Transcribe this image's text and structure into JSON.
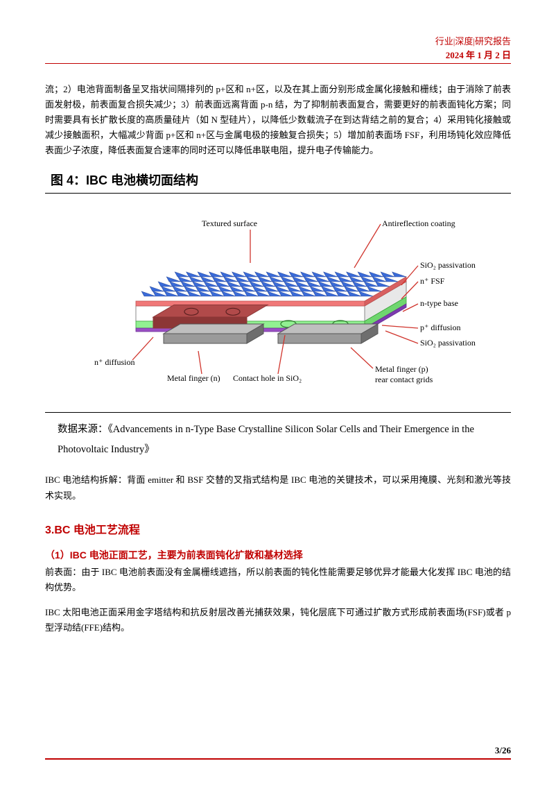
{
  "header": {
    "line1": "行业|深度|研究报告",
    "line2": "2024 年 1 月 2 日",
    "color": "#c00000"
  },
  "intro_para": "流；2）电池背面制备呈叉指状间隔排列的 p+区和 n+区，以及在其上面分别形成金属化接触和栅线；由于消除了前表面发射极，前表面复合损失减少；3）前表面远离背面 p-n 结，为了抑制前表面复合，需要更好的前表面钝化方案；同时需要具有长扩散长度的高质量硅片（如 N 型硅片），以降低少数载流子在到达背结之前的复合；4）采用钝化接触或减少接触面积，大幅减少背面 p+区和 n+区与金属电极的接触复合损失；5）增加前表面场 FSF，利用场钝化效应降低表面少子浓度，降低表面复合速率的同时还可以降低串联电阻，提升电子传输能力。",
  "figure": {
    "title": "图 4：IBC 电池横切面结构",
    "source_label": "数据来源：",
    "source_text": "《Advancements  in  n-Type  Base  Crystalline  Silicon  Solar  Cells  and  Their Emergence  in the Photovoltaic Industry》",
    "labels": {
      "textured": "Textured surface",
      "arc": "Antireflection coating",
      "sio2_top": "SiO₂ passivation",
      "fsf": "n⁺ FSF",
      "nbase": "n-type base",
      "pdiff": "p⁺ diffusion",
      "sio2_bot": "SiO₂ passivation",
      "ndiff": "n⁺ diffusion",
      "mfn": "Metal finger (n)",
      "chole": "Contact hole in SiO₂",
      "mfp_l1": "Metal finger (p)",
      "mfp_l2": "rear contact grids"
    },
    "colors": {
      "arc_fill": "#3a6bd8",
      "arc_stroke": "#2a4ca0",
      "fsf_fill": "#f07878",
      "nbase_fill": "#ffffff",
      "nbase_side": "#e8e8e8",
      "pdiff_fill": "#92f092",
      "sio2_bot": "#9a4ec4",
      "ndiff_fill": "#b14a4a",
      "ndiff_side": "#8c3636",
      "metal_fill": "#9a9a9a",
      "metal_side": "#6e6e6e",
      "lead_stroke": "#d0342c",
      "text": "#000000"
    }
  },
  "para_after_fig": "IBC 电池结构拆解：背面 emitter 和 BSF 交替的叉指式结构是 IBC 电池的关键技术，可以采用掩膜、光刻和激光等技术实现。",
  "section3": {
    "heading": "3.BC 电池工艺流程",
    "sub_heading": "（1）IBC 电池正面工艺，主要为前表面钝化扩散和基材选择",
    "p1": "前表面：由于 IBC 电池前表面没有金属栅线遮挡，所以前表面的钝化性能需要足够优异才能最大化发挥 IBC 电池的结构优势。",
    "p2": "IBC 太阳电池正面采用金字塔结构和抗反射层改善光捕获效果，钝化层底下可通过扩散方式形成前表面场(FSF)或者 p 型浮动结(FFE)结构。"
  },
  "footer": {
    "page": "3",
    "total": "/26"
  }
}
